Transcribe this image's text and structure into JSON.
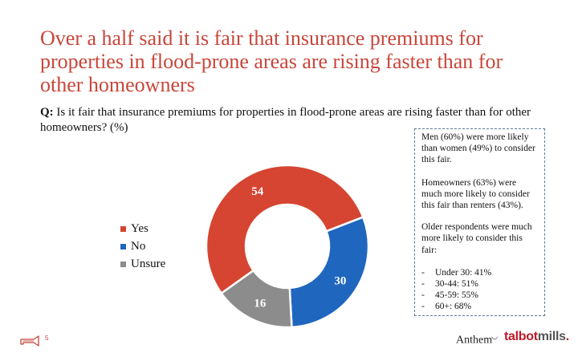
{
  "header": {
    "title": "Over a half said it is fair that insurance premiums for properties in flood-prone areas are rising faster than for other homeowners"
  },
  "question": {
    "prefix": "Q:",
    "text": "Is it fair that insurance premiums for properties in flood-prone areas are rising faster than for other homeowners? (%)"
  },
  "chart_data": {
    "type": "pie",
    "donut": true,
    "categories": [
      "Yes",
      "No",
      "Unsure"
    ],
    "values": [
      54,
      30,
      16
    ],
    "colors": [
      "#d64532",
      "#1f66bf",
      "#8c8c8c"
    ],
    "legend_position": "left"
  },
  "notes": {
    "gender": "Men (60%) were more likely than women (49%) to consider this fair.",
    "tenure": "Homeowners (63%) were much more likely to consider this fair than renters (43%).",
    "age_intro": "Older respondents were much more likely to consider this fair:",
    "age_items": [
      "Under 30: 41%",
      "30-44: 51%",
      "45-59: 55%",
      "60+: 68%"
    ],
    "dash": "-"
  },
  "footer": {
    "page_number": "5",
    "brand_left": "Anthem",
    "brand_right_a": "talbot",
    "brand_right_b": "mills",
    "brand_right_dot": ".",
    "brand_colors": {
      "talbot": "#c0182a",
      "mills": "#555555"
    }
  }
}
